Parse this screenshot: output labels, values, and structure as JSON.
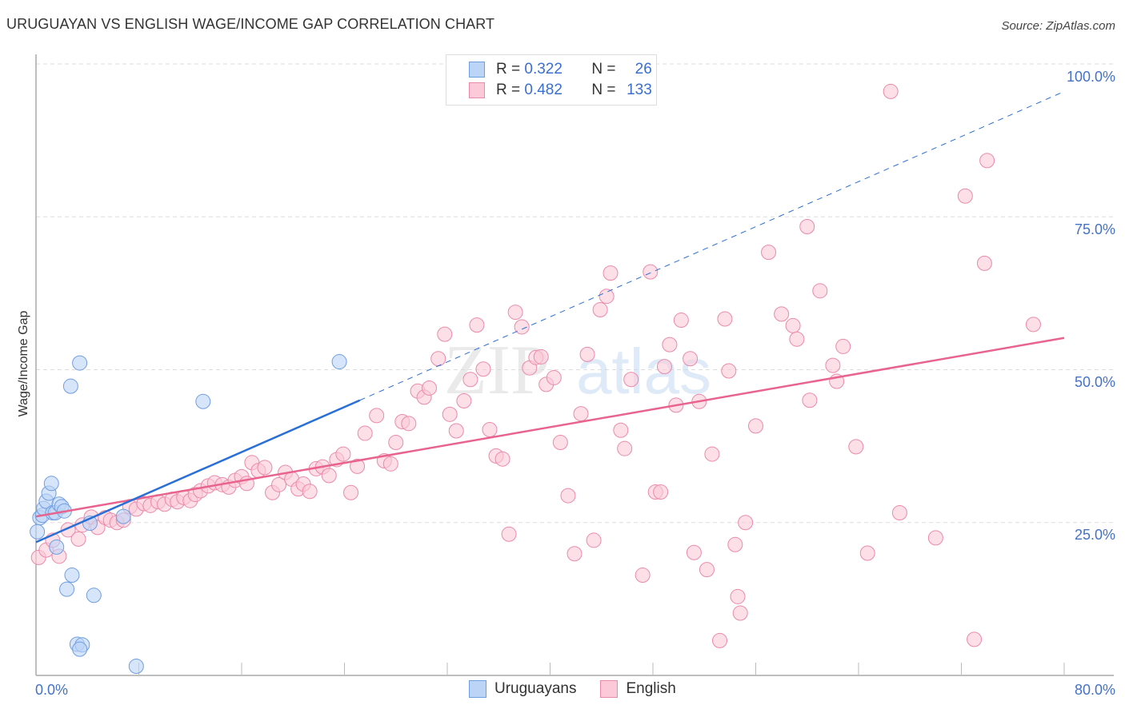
{
  "header": {
    "title": "URUGUAYAN VS ENGLISH WAGE/INCOME GAP CORRELATION CHART",
    "source": "Source: ZipAtlas.com"
  },
  "legend": {
    "rows": [
      {
        "r_label": "R =",
        "r_value": "0.322",
        "n_label": "N =",
        "n_value": "26"
      },
      {
        "r_label": "R =",
        "r_value": "0.482",
        "n_label": "N =",
        "n_value": "133"
      }
    ],
    "series_labels": [
      "Uruguayans",
      "English"
    ]
  },
  "axes": {
    "ylabel": "Wage/Income Gap",
    "yticks": [
      "100.0%",
      "75.0%",
      "50.0%",
      "25.0%"
    ],
    "xticks": [
      "0.0%",
      "80.0%"
    ]
  },
  "colors": {
    "uruguayans_fill": "#bcd4f6",
    "uruguayans_stroke": "#6f9ee0",
    "uruguayans_line": "#2a6fd6",
    "english_fill": "#fcc9d8",
    "english_stroke": "#ea8aaa",
    "english_line": "#e8648e",
    "tick_text": "#4472c4"
  },
  "watermark": {
    "part1": "ZIP",
    "part2": "atlas"
  },
  "chart_data": {
    "type": "scatter",
    "title": "URUGUAYAN VS ENGLISH WAGE/INCOME GAP CORRELATION CHART",
    "xlabel": "",
    "ylabel": "Wage/Income Gap",
    "xlim": [
      0,
      80
    ],
    "ylim": [
      0,
      100
    ],
    "grid": true,
    "legend_position": "top-center",
    "series": [
      {
        "name": "Uruguayans",
        "r": 0.322,
        "n": 26,
        "trend": {
          "x0": 0,
          "y0": 21.8,
          "x1": 25.2,
          "y1": 45.0,
          "extended_to": {
            "x": 80,
            "y": 95.5
          }
        },
        "points": [
          [
            0.1,
            23.5
          ],
          [
            0.3,
            25.8
          ],
          [
            0.5,
            26.2
          ],
          [
            0.6,
            27.3
          ],
          [
            0.8,
            28.5
          ],
          [
            1.0,
            29.8
          ],
          [
            1.2,
            31.4
          ],
          [
            1.3,
            26.6
          ],
          [
            1.5,
            26.6
          ],
          [
            1.8,
            28.0
          ],
          [
            2.0,
            27.6
          ],
          [
            2.2,
            26.9
          ],
          [
            1.6,
            21.0
          ],
          [
            2.7,
            47.3
          ],
          [
            3.4,
            51.1
          ],
          [
            2.8,
            16.4
          ],
          [
            2.4,
            14.1
          ],
          [
            4.5,
            13.1
          ],
          [
            3.2,
            5.1
          ],
          [
            3.6,
            5.0
          ],
          [
            3.4,
            4.3
          ],
          [
            7.8,
            1.5
          ],
          [
            13.0,
            44.8
          ],
          [
            23.6,
            51.3
          ],
          [
            6.8,
            26.0
          ],
          [
            4.2,
            24.9
          ]
        ]
      },
      {
        "name": "English",
        "r": 0.482,
        "n": 133,
        "trend": {
          "x0": 0,
          "y0": 26.0,
          "x1": 80,
          "y1": 55.2
        },
        "points": [
          [
            0.2,
            19.3
          ],
          [
            0.8,
            20.5
          ],
          [
            1.3,
            22.1
          ],
          [
            1.8,
            19.5
          ],
          [
            2.5,
            23.8
          ],
          [
            3.3,
            22.3
          ],
          [
            3.6,
            24.6
          ],
          [
            4.3,
            25.9
          ],
          [
            4.8,
            24.2
          ],
          [
            5.4,
            25.8
          ],
          [
            5.8,
            25.4
          ],
          [
            6.3,
            25.0
          ],
          [
            6.8,
            25.4
          ],
          [
            7.3,
            27.6
          ],
          [
            7.8,
            27.2
          ],
          [
            8.4,
            28.1
          ],
          [
            8.9,
            27.8
          ],
          [
            9.5,
            28.4
          ],
          [
            10.0,
            28.0
          ],
          [
            10.6,
            28.8
          ],
          [
            11.0,
            28.4
          ],
          [
            11.5,
            29.1
          ],
          [
            12.0,
            28.6
          ],
          [
            12.4,
            29.6
          ],
          [
            12.8,
            30.2
          ],
          [
            13.4,
            31.0
          ],
          [
            13.9,
            31.5
          ],
          [
            14.5,
            31.2
          ],
          [
            15.0,
            30.8
          ],
          [
            15.5,
            31.9
          ],
          [
            16.0,
            32.5
          ],
          [
            16.4,
            31.4
          ],
          [
            16.8,
            34.8
          ],
          [
            17.3,
            33.5
          ],
          [
            17.8,
            34.0
          ],
          [
            18.4,
            29.9
          ],
          [
            18.9,
            31.2
          ],
          [
            19.4,
            33.2
          ],
          [
            19.9,
            32.1
          ],
          [
            20.4,
            30.5
          ],
          [
            20.8,
            31.3
          ],
          [
            21.3,
            30.1
          ],
          [
            21.8,
            33.8
          ],
          [
            22.3,
            34.1
          ],
          [
            22.8,
            32.7
          ],
          [
            23.4,
            35.3
          ],
          [
            23.9,
            36.2
          ],
          [
            24.5,
            29.9
          ],
          [
            25.0,
            34.2
          ],
          [
            25.6,
            39.6
          ],
          [
            26.5,
            42.5
          ],
          [
            27.1,
            35.1
          ],
          [
            27.6,
            34.6
          ],
          [
            28.0,
            38.1
          ],
          [
            28.5,
            41.5
          ],
          [
            29.0,
            41.2
          ],
          [
            29.7,
            46.5
          ],
          [
            30.2,
            45.5
          ],
          [
            30.6,
            47.0
          ],
          [
            31.3,
            51.8
          ],
          [
            31.8,
            55.8
          ],
          [
            32.2,
            42.7
          ],
          [
            32.7,
            40.0
          ],
          [
            33.3,
            44.9
          ],
          [
            33.8,
            48.4
          ],
          [
            34.3,
            57.3
          ],
          [
            34.8,
            50.1
          ],
          [
            35.3,
            40.2
          ],
          [
            35.8,
            35.9
          ],
          [
            36.3,
            35.4
          ],
          [
            36.8,
            23.1
          ],
          [
            37.3,
            59.4
          ],
          [
            37.8,
            57.0
          ],
          [
            38.4,
            50.3
          ],
          [
            38.9,
            52.0
          ],
          [
            39.3,
            52.1
          ],
          [
            39.7,
            47.6
          ],
          [
            40.3,
            48.7
          ],
          [
            40.8,
            38.1
          ],
          [
            41.4,
            29.4
          ],
          [
            41.9,
            19.9
          ],
          [
            42.4,
            42.8
          ],
          [
            42.9,
            52.5
          ],
          [
            43.4,
            22.1
          ],
          [
            43.9,
            59.8
          ],
          [
            44.4,
            62.0
          ],
          [
            44.7,
            65.8
          ],
          [
            45.5,
            40.1
          ],
          [
            45.8,
            37.1
          ],
          [
            46.3,
            48.4
          ],
          [
            47.2,
            16.4
          ],
          [
            48.2,
            30.0
          ],
          [
            48.6,
            30.0
          ],
          [
            48.9,
            50.5
          ],
          [
            49.3,
            54.1
          ],
          [
            49.8,
            44.2
          ],
          [
            50.2,
            58.1
          ],
          [
            50.9,
            51.8
          ],
          [
            51.2,
            20.1
          ],
          [
            51.6,
            44.8
          ],
          [
            52.2,
            17.3
          ],
          [
            52.6,
            36.2
          ],
          [
            53.2,
            5.7
          ],
          [
            53.6,
            58.3
          ],
          [
            53.9,
            49.8
          ],
          [
            54.4,
            21.4
          ],
          [
            54.6,
            12.9
          ],
          [
            54.8,
            10.2
          ],
          [
            55.2,
            25.0
          ],
          [
            56.0,
            40.8
          ],
          [
            57.0,
            69.2
          ],
          [
            58.0,
            59.1
          ],
          [
            58.9,
            57.2
          ],
          [
            59.2,
            55.0
          ],
          [
            60.0,
            73.4
          ],
          [
            61.0,
            62.9
          ],
          [
            62.0,
            50.7
          ],
          [
            62.3,
            48.1
          ],
          [
            62.8,
            53.8
          ],
          [
            63.8,
            37.4
          ],
          [
            64.7,
            20.0
          ],
          [
            67.2,
            26.6
          ],
          [
            70.0,
            22.5
          ],
          [
            72.3,
            78.4
          ],
          [
            73.0,
            5.9
          ],
          [
            73.8,
            67.4
          ],
          [
            74.0,
            84.2
          ],
          [
            77.6,
            57.4
          ],
          [
            66.5,
            95.5
          ],
          [
            60.2,
            45.0
          ],
          [
            47.8,
            66.0
          ]
        ]
      }
    ]
  }
}
